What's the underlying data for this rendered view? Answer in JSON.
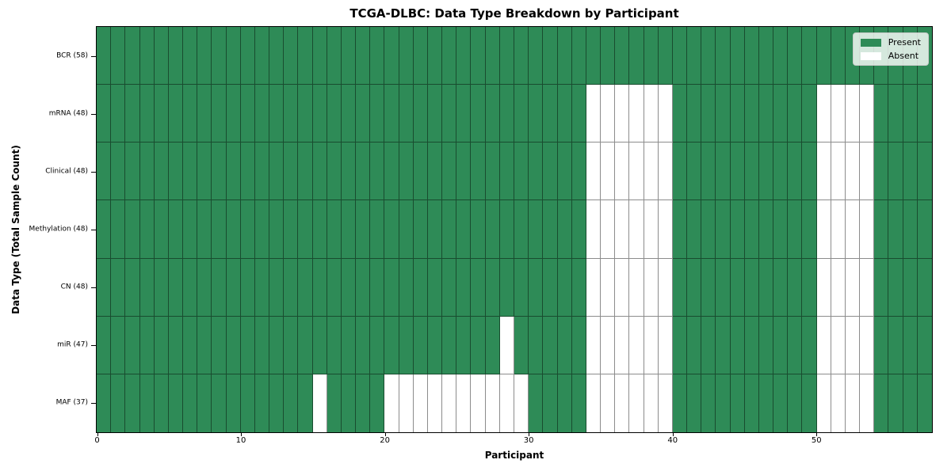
{
  "chart_data": {
    "type": "heatmap",
    "title": "TCGA-DLBC: Data Type Breakdown by Participant",
    "xlabel": "Participant",
    "ylabel": "Data Type (Total Sample Count)",
    "x_range": [
      0,
      58
    ],
    "x_ticks": [
      0,
      10,
      20,
      30,
      40,
      50
    ],
    "n_participants": 58,
    "grid": "cell borders on",
    "colors": {
      "present": "#2e8b57",
      "absent": "#ffffff",
      "cell_border": "rgba(0,0,0,0.45)"
    },
    "legend": {
      "position": "upper right",
      "entries": [
        {
          "label": "Present",
          "value": "present"
        },
        {
          "label": "Absent",
          "value": "absent"
        }
      ]
    },
    "rows": [
      {
        "data_type": "BCR",
        "tick_label": "BCR (58)",
        "present_count": 58,
        "absent_participants": []
      },
      {
        "data_type": "mRNA",
        "tick_label": "mRNA (48)",
        "present_count": 48,
        "absent_participants": [
          34,
          35,
          36,
          37,
          38,
          39,
          50,
          51,
          52,
          53
        ]
      },
      {
        "data_type": "Clinical",
        "tick_label": "Clinical (48)",
        "present_count": 48,
        "absent_participants": [
          34,
          35,
          36,
          37,
          38,
          39,
          50,
          51,
          52,
          53
        ]
      },
      {
        "data_type": "Methylation",
        "tick_label": "Methylation (48)",
        "present_count": 48,
        "absent_participants": [
          34,
          35,
          36,
          37,
          38,
          39,
          50,
          51,
          52,
          53
        ]
      },
      {
        "data_type": "CN",
        "tick_label": "CN (48)",
        "present_count": 48,
        "absent_participants": [
          34,
          35,
          36,
          37,
          38,
          39,
          50,
          51,
          52,
          53
        ]
      },
      {
        "data_type": "miR",
        "tick_label": "miR (47)",
        "present_count": 47,
        "absent_participants": [
          28,
          34,
          35,
          36,
          37,
          38,
          39,
          50,
          51,
          52,
          53
        ]
      },
      {
        "data_type": "MAF",
        "tick_label": "MAF (37)",
        "present_count": 37,
        "absent_participants": [
          15,
          20,
          21,
          22,
          23,
          24,
          25,
          26,
          27,
          28,
          29,
          34,
          35,
          36,
          37,
          38,
          39,
          50,
          51,
          52,
          53
        ]
      }
    ]
  }
}
